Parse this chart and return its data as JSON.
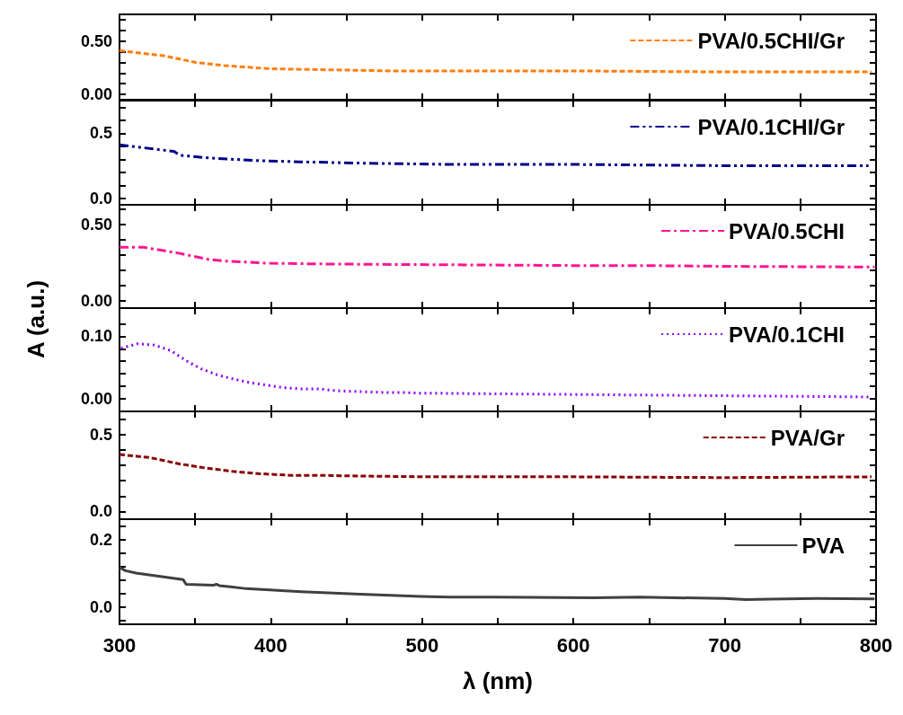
{
  "chart_data": [
    {
      "type": "line",
      "legend": "top right",
      "marker": "none",
      "grid": false,
      "tick_labels": "y",
      "series": [
        {
          "name": "PVA/0.5CHI/Gr",
          "color": "#ff7f0e",
          "line_style": "dashed",
          "x": [
            300,
            330,
            350,
            369,
            399,
            439,
            478,
            518,
            600,
            700,
            797
          ],
          "values": [
            0.41,
            0.36,
            0.3,
            0.27,
            0.24,
            0.23,
            0.22,
            0.22,
            0.22,
            0.21,
            0.21
          ]
        }
      ],
      "xlim": [
        300,
        800
      ],
      "xticks": [
        300,
        {
          "value": 350,
          "label": null
        },
        400,
        {
          "value": 450,
          "label": null
        },
        500,
        {
          "value": 550,
          "label": null
        },
        600,
        {
          "value": 650,
          "label": null
        },
        700,
        {
          "value": 750,
          "label": null
        },
        800
      ],
      "ylim": [
        -0.05,
        0.75
      ],
      "yticks": [
        {
          "value": 0,
          "label": "0.00"
        },
        {
          "value": 0.1,
          "label": null
        },
        {
          "value": 0.2,
          "label": null
        },
        {
          "value": 0.3,
          "label": null
        },
        {
          "value": 0.4,
          "label": null
        },
        {
          "value": 0.5,
          "label": "0.50"
        },
        {
          "value": 0.6,
          "label": null
        },
        {
          "value": 0.7,
          "label": null
        }
      ]
    },
    {
      "type": "line",
      "legend": "top right",
      "marker": "none",
      "grid": false,
      "tick_labels": "y",
      "series": [
        {
          "name": "PVA/0.1CHI/Gr",
          "color": "#00008b",
          "line_style": "dashdotdot",
          "x": [
            300,
            336,
            340,
            359,
            389,
            419,
            459,
            518,
            600,
            700,
            795
          ],
          "values": [
            0.41,
            0.36,
            0.33,
            0.31,
            0.29,
            0.28,
            0.27,
            0.26,
            0.26,
            0.25,
            0.25
          ]
        }
      ],
      "xlim": [
        300,
        800
      ],
      "xticks": [
        300,
        {
          "value": 350,
          "label": null
        },
        400,
        {
          "value": 450,
          "label": null
        },
        500,
        {
          "value": 550,
          "label": null
        },
        600,
        {
          "value": 650,
          "label": null
        },
        700,
        {
          "value": 750,
          "label": null
        },
        800
      ],
      "ylim": [
        -0.05,
        0.75
      ],
      "yticks": [
        {
          "value": 0,
          "label": "0.0"
        },
        {
          "value": 0.1,
          "label": null
        },
        {
          "value": 0.2,
          "label": null
        },
        {
          "value": 0.3,
          "label": null
        },
        {
          "value": 0.4,
          "label": null
        },
        {
          "value": 0.5,
          "label": "0.5"
        },
        {
          "value": 0.6,
          "label": null
        },
        {
          "value": 0.7,
          "label": null
        }
      ]
    },
    {
      "type": "line",
      "legend": "top right",
      "marker": "none",
      "grid": false,
      "tick_labels": "y",
      "series": [
        {
          "name": "PVA/0.5CHI",
          "color": "#ff1493",
          "line_style": "dashdot",
          "x": [
            300,
            316,
            340,
            359,
            369,
            399,
            439,
            518,
            600,
            644,
            700,
            799
          ],
          "values": [
            0.35,
            0.35,
            0.31,
            0.27,
            0.26,
            0.245,
            0.24,
            0.235,
            0.23,
            0.23,
            0.225,
            0.22
          ]
        }
      ],
      "xlim": [
        300,
        800
      ],
      "xticks": [
        300,
        {
          "value": 350,
          "label": null
        },
        400,
        {
          "value": 450,
          "label": null
        },
        500,
        {
          "value": 550,
          "label": null
        },
        600,
        {
          "value": 650,
          "label": null
        },
        700,
        {
          "value": 750,
          "label": null
        },
        800
      ],
      "ylim": [
        -0.05,
        0.63
      ],
      "yticks": [
        {
          "value": 0,
          "label": "0.00"
        },
        {
          "value": 0.1,
          "label": null
        },
        {
          "value": 0.2,
          "label": null
        },
        {
          "value": 0.3,
          "label": null
        },
        {
          "value": 0.4,
          "label": null
        },
        {
          "value": 0.5,
          "label": "0.50"
        },
        {
          "value": 0.6,
          "label": null
        }
      ]
    },
    {
      "type": "line",
      "legend": "top right",
      "marker": "none",
      "grid": false,
      "tick_labels": "y",
      "ylabel": "A (a.u.)",
      "series": [
        {
          "name": "PVA/0.1CHI",
          "color": "#8b00ff",
          "line_style": "dotted",
          "x": [
            301,
            312,
            323,
            334,
            344,
            354,
            365,
            375,
            386,
            397,
            408,
            420,
            432,
            443,
            454,
            466,
            477,
            488,
            499,
            510,
            550,
            600,
            650,
            700,
            750,
            797
          ],
          "values": [
            0.081,
            0.088,
            0.086,
            0.077,
            0.061,
            0.048,
            0.038,
            0.032,
            0.026,
            0.022,
            0.018,
            0.016,
            0.016,
            0.013,
            0.012,
            0.011,
            0.01,
            0.01,
            0.009,
            0.009,
            0.008,
            0.007,
            0.006,
            0.005,
            0.004,
            0.003
          ]
        }
      ],
      "xlim": [
        300,
        800
      ],
      "xticks": [
        300,
        {
          "value": 350,
          "label": null
        },
        400,
        {
          "value": 450,
          "label": null
        },
        500,
        {
          "value": 550,
          "label": null
        },
        600,
        {
          "value": 650,
          "label": null
        },
        700,
        {
          "value": 750,
          "label": null
        },
        800
      ],
      "ylim": [
        -0.02,
        0.145
      ],
      "yticks": [
        {
          "value": 0,
          "label": "0.00"
        },
        {
          "value": 0.02,
          "label": null
        },
        {
          "value": 0.04,
          "label": null
        },
        {
          "value": 0.06,
          "label": null
        },
        {
          "value": 0.08,
          "label": null
        },
        {
          "value": 0.1,
          "label": "0.10"
        },
        {
          "value": 0.12,
          "label": null
        }
      ]
    },
    {
      "type": "line",
      "legend": "top right",
      "marker": "none",
      "grid": false,
      "tick_labels": "y",
      "series": [
        {
          "name": "PVA/Gr",
          "color": "#8b0000",
          "line_style": "dashed",
          "x": [
            300,
            320,
            339,
            355,
            375,
            393,
            413,
            431,
            459,
            508,
            600,
            700,
            797
          ],
          "values": [
            0.37,
            0.35,
            0.31,
            0.285,
            0.26,
            0.245,
            0.235,
            0.235,
            0.23,
            0.225,
            0.225,
            0.22,
            0.225
          ]
        }
      ],
      "xlim": [
        300,
        800
      ],
      "xticks": [
        300,
        {
          "value": 350,
          "label": null
        },
        400,
        {
          "value": 450,
          "label": null
        },
        500,
        {
          "value": 550,
          "label": null
        },
        600,
        {
          "value": 650,
          "label": null
        },
        700,
        {
          "value": 750,
          "label": null
        },
        800
      ],
      "ylim": [
        -0.05,
        0.65
      ],
      "yticks": [
        {
          "value": 0,
          "label": "0.0"
        },
        {
          "value": 0.1,
          "label": null
        },
        {
          "value": 0.2,
          "label": null
        },
        {
          "value": 0.3,
          "label": null
        },
        {
          "value": 0.4,
          "label": null
        },
        {
          "value": 0.5,
          "label": "0.5"
        },
        {
          "value": 0.6,
          "label": null
        }
      ]
    },
    {
      "type": "line",
      "legend": "top right",
      "marker": "none",
      "grid": false,
      "xlabel": "λ (nm)",
      "series": [
        {
          "name": "PVA",
          "color": "#404040",
          "line_style": "solid",
          "x": [
            300,
            304,
            311,
            342,
            344,
            362,
            364,
            366,
            384,
            420,
            459,
            499,
            518,
            550,
            613,
            644,
            700,
            714,
            730,
            761,
            799
          ],
          "values": [
            0.118,
            0.108,
            0.101,
            0.082,
            0.068,
            0.065,
            0.068,
            0.064,
            0.055,
            0.046,
            0.039,
            0.032,
            0.03,
            0.03,
            0.028,
            0.03,
            0.026,
            0.023,
            0.024,
            0.026,
            0.025
          ]
        }
      ],
      "xlim": [
        300,
        800
      ],
      "xticks": [
        300,
        {
          "value": 350,
          "label": null
        },
        400,
        {
          "value": 450,
          "label": null
        },
        500,
        {
          "value": 550,
          "label": null
        },
        600,
        {
          "value": 650,
          "label": null
        },
        700,
        {
          "value": 750,
          "label": null
        },
        800
      ],
      "ylim": [
        -0.05,
        0.26
      ],
      "yticks": [
        {
          "value": -0.04,
          "label": null
        },
        {
          "value": 0,
          "label": "0.0"
        },
        {
          "value": 0.04,
          "label": null
        },
        {
          "value": 0.08,
          "label": null
        },
        {
          "value": 0.12,
          "label": null
        },
        {
          "value": 0.16,
          "label": null
        },
        {
          "value": 0.2,
          "label": "0.2"
        },
        {
          "value": 0.24,
          "label": null
        }
      ]
    }
  ]
}
